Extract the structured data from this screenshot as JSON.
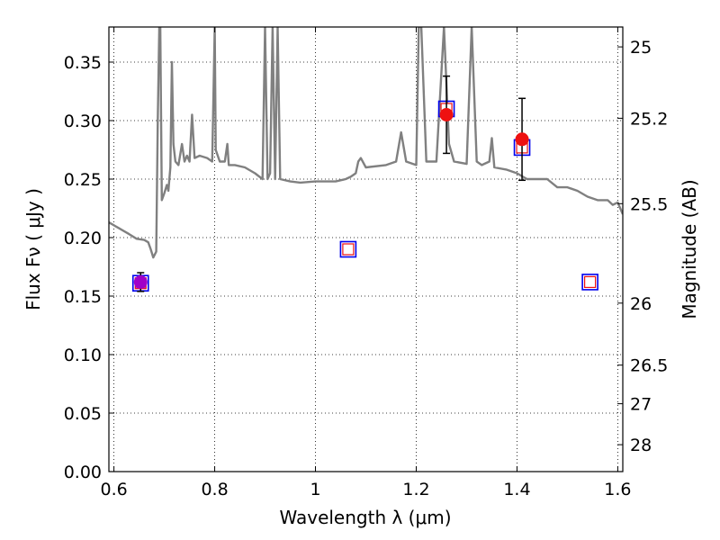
{
  "chart_data": {
    "type": "scatter",
    "title": "",
    "xlabel": "Wavelength  λ (μm)",
    "ylabel_left": "Flux  Fν  ( μJy )",
    "ylabel_right": "Magnitude (AB)",
    "xlim": [
      0.59,
      1.61
    ],
    "ylim": [
      0.0,
      0.38
    ],
    "grid": true,
    "xticks": [
      {
        "value": 0.6,
        "label": "0.6"
      },
      {
        "value": 0.8,
        "label": "0.8"
      },
      {
        "value": 1.0,
        "label": "1"
      },
      {
        "value": 1.2,
        "label": "1.2"
      },
      {
        "value": 1.4,
        "label": "1.4"
      },
      {
        "value": 1.6,
        "label": "1.6"
      }
    ],
    "yticks": [
      {
        "value": 0.0,
        "label": "0.00"
      },
      {
        "value": 0.05,
        "label": "0.05"
      },
      {
        "value": 0.1,
        "label": "0.10"
      },
      {
        "value": 0.15,
        "label": "0.15"
      },
      {
        "value": 0.2,
        "label": "0.20"
      },
      {
        "value": 0.25,
        "label": "0.25"
      },
      {
        "value": 0.3,
        "label": "0.30"
      },
      {
        "value": 0.35,
        "label": "0.35"
      }
    ],
    "right_ticks": [
      {
        "flux": 0.363,
        "label": "25"
      },
      {
        "flux": 0.302,
        "label": "25.2"
      },
      {
        "flux": 0.229,
        "label": "25.5"
      },
      {
        "flux": 0.144,
        "label": "26"
      },
      {
        "flux": 0.091,
        "label": "26.5"
      },
      {
        "flux": 0.058,
        "label": "27"
      },
      {
        "flux": 0.023,
        "label": "28"
      }
    ],
    "series": [
      {
        "kind": "spectrum",
        "color": "#808080",
        "points": [
          [
            0.59,
            0.213
          ],
          [
            0.61,
            0.208
          ],
          [
            0.63,
            0.203
          ],
          [
            0.645,
            0.199
          ],
          [
            0.66,
            0.198
          ],
          [
            0.668,
            0.196
          ],
          [
            0.673,
            0.19
          ],
          [
            0.678,
            0.183
          ],
          [
            0.684,
            0.188
          ],
          [
            0.687,
            0.3
          ],
          [
            0.69,
            0.38
          ],
          [
            0.692,
            0.38
          ],
          [
            0.695,
            0.232
          ],
          [
            0.7,
            0.238
          ],
          [
            0.705,
            0.245
          ],
          [
            0.708,
            0.24
          ],
          [
            0.712,
            0.26
          ],
          [
            0.715,
            0.35
          ],
          [
            0.718,
            0.28
          ],
          [
            0.722,
            0.265
          ],
          [
            0.728,
            0.262
          ],
          [
            0.735,
            0.28
          ],
          [
            0.74,
            0.265
          ],
          [
            0.745,
            0.27
          ],
          [
            0.75,
            0.265
          ],
          [
            0.755,
            0.305
          ],
          [
            0.76,
            0.268
          ],
          [
            0.77,
            0.27
          ],
          [
            0.785,
            0.268
          ],
          [
            0.795,
            0.265
          ],
          [
            0.8,
            0.38
          ],
          [
            0.802,
            0.275
          ],
          [
            0.81,
            0.265
          ],
          [
            0.82,
            0.265
          ],
          [
            0.825,
            0.28
          ],
          [
            0.828,
            0.262
          ],
          [
            0.84,
            0.262
          ],
          [
            0.86,
            0.26
          ],
          [
            0.88,
            0.255
          ],
          [
            0.895,
            0.25
          ],
          [
            0.9,
            0.38
          ],
          [
            0.905,
            0.25
          ],
          [
            0.91,
            0.255
          ],
          [
            0.915,
            0.38
          ],
          [
            0.92,
            0.25
          ],
          [
            0.925,
            0.38
          ],
          [
            0.93,
            0.25
          ],
          [
            0.95,
            0.248
          ],
          [
            0.97,
            0.247
          ],
          [
            1.0,
            0.248
          ],
          [
            1.02,
            0.248
          ],
          [
            1.04,
            0.248
          ],
          [
            1.06,
            0.25
          ],
          [
            1.07,
            0.252
          ],
          [
            1.08,
            0.255
          ],
          [
            1.085,
            0.265
          ],
          [
            1.09,
            0.268
          ],
          [
            1.1,
            0.26
          ],
          [
            1.14,
            0.262
          ],
          [
            1.16,
            0.265
          ],
          [
            1.17,
            0.29
          ],
          [
            1.18,
            0.265
          ],
          [
            1.2,
            0.262
          ],
          [
            1.205,
            0.38
          ],
          [
            1.21,
            0.38
          ],
          [
            1.22,
            0.265
          ],
          [
            1.24,
            0.265
          ],
          [
            1.255,
            0.38
          ],
          [
            1.265,
            0.28
          ],
          [
            1.275,
            0.265
          ],
          [
            1.3,
            0.263
          ],
          [
            1.31,
            0.38
          ],
          [
            1.32,
            0.265
          ],
          [
            1.33,
            0.262
          ],
          [
            1.345,
            0.265
          ],
          [
            1.35,
            0.285
          ],
          [
            1.355,
            0.26
          ],
          [
            1.38,
            0.258
          ],
          [
            1.4,
            0.255
          ],
          [
            1.42,
            0.25
          ],
          [
            1.44,
            0.25
          ],
          [
            1.46,
            0.25
          ],
          [
            1.48,
            0.243
          ],
          [
            1.5,
            0.243
          ],
          [
            1.52,
            0.24
          ],
          [
            1.54,
            0.235
          ],
          [
            1.56,
            0.232
          ],
          [
            1.58,
            0.232
          ],
          [
            1.59,
            0.228
          ],
          [
            1.6,
            0.23
          ],
          [
            1.61,
            0.22
          ]
        ]
      },
      {
        "kind": "model_boxes",
        "name": "",
        "points": [
          {
            "x": 0.653,
            "y": 0.161,
            "inner": "#9b30ff"
          },
          {
            "x": 1.065,
            "y": 0.19,
            "inner": "#ffffff"
          },
          {
            "x": 1.26,
            "y": 0.31,
            "inner": "#ffffff"
          },
          {
            "x": 1.41,
            "y": 0.277,
            "inner": "#ffffff"
          },
          {
            "x": 1.545,
            "y": 0.162,
            "inner": "#ffffff"
          }
        ]
      },
      {
        "kind": "observed",
        "name": "",
        "points": [
          {
            "x": 0.653,
            "y": 0.162,
            "err": 0.008,
            "color": "#a000c8"
          },
          {
            "x": 1.26,
            "y": 0.305,
            "err": 0.033,
            "color": "#ee1111"
          },
          {
            "x": 1.41,
            "y": 0.284,
            "err": 0.035,
            "color": "#ee1111"
          }
        ]
      }
    ]
  }
}
